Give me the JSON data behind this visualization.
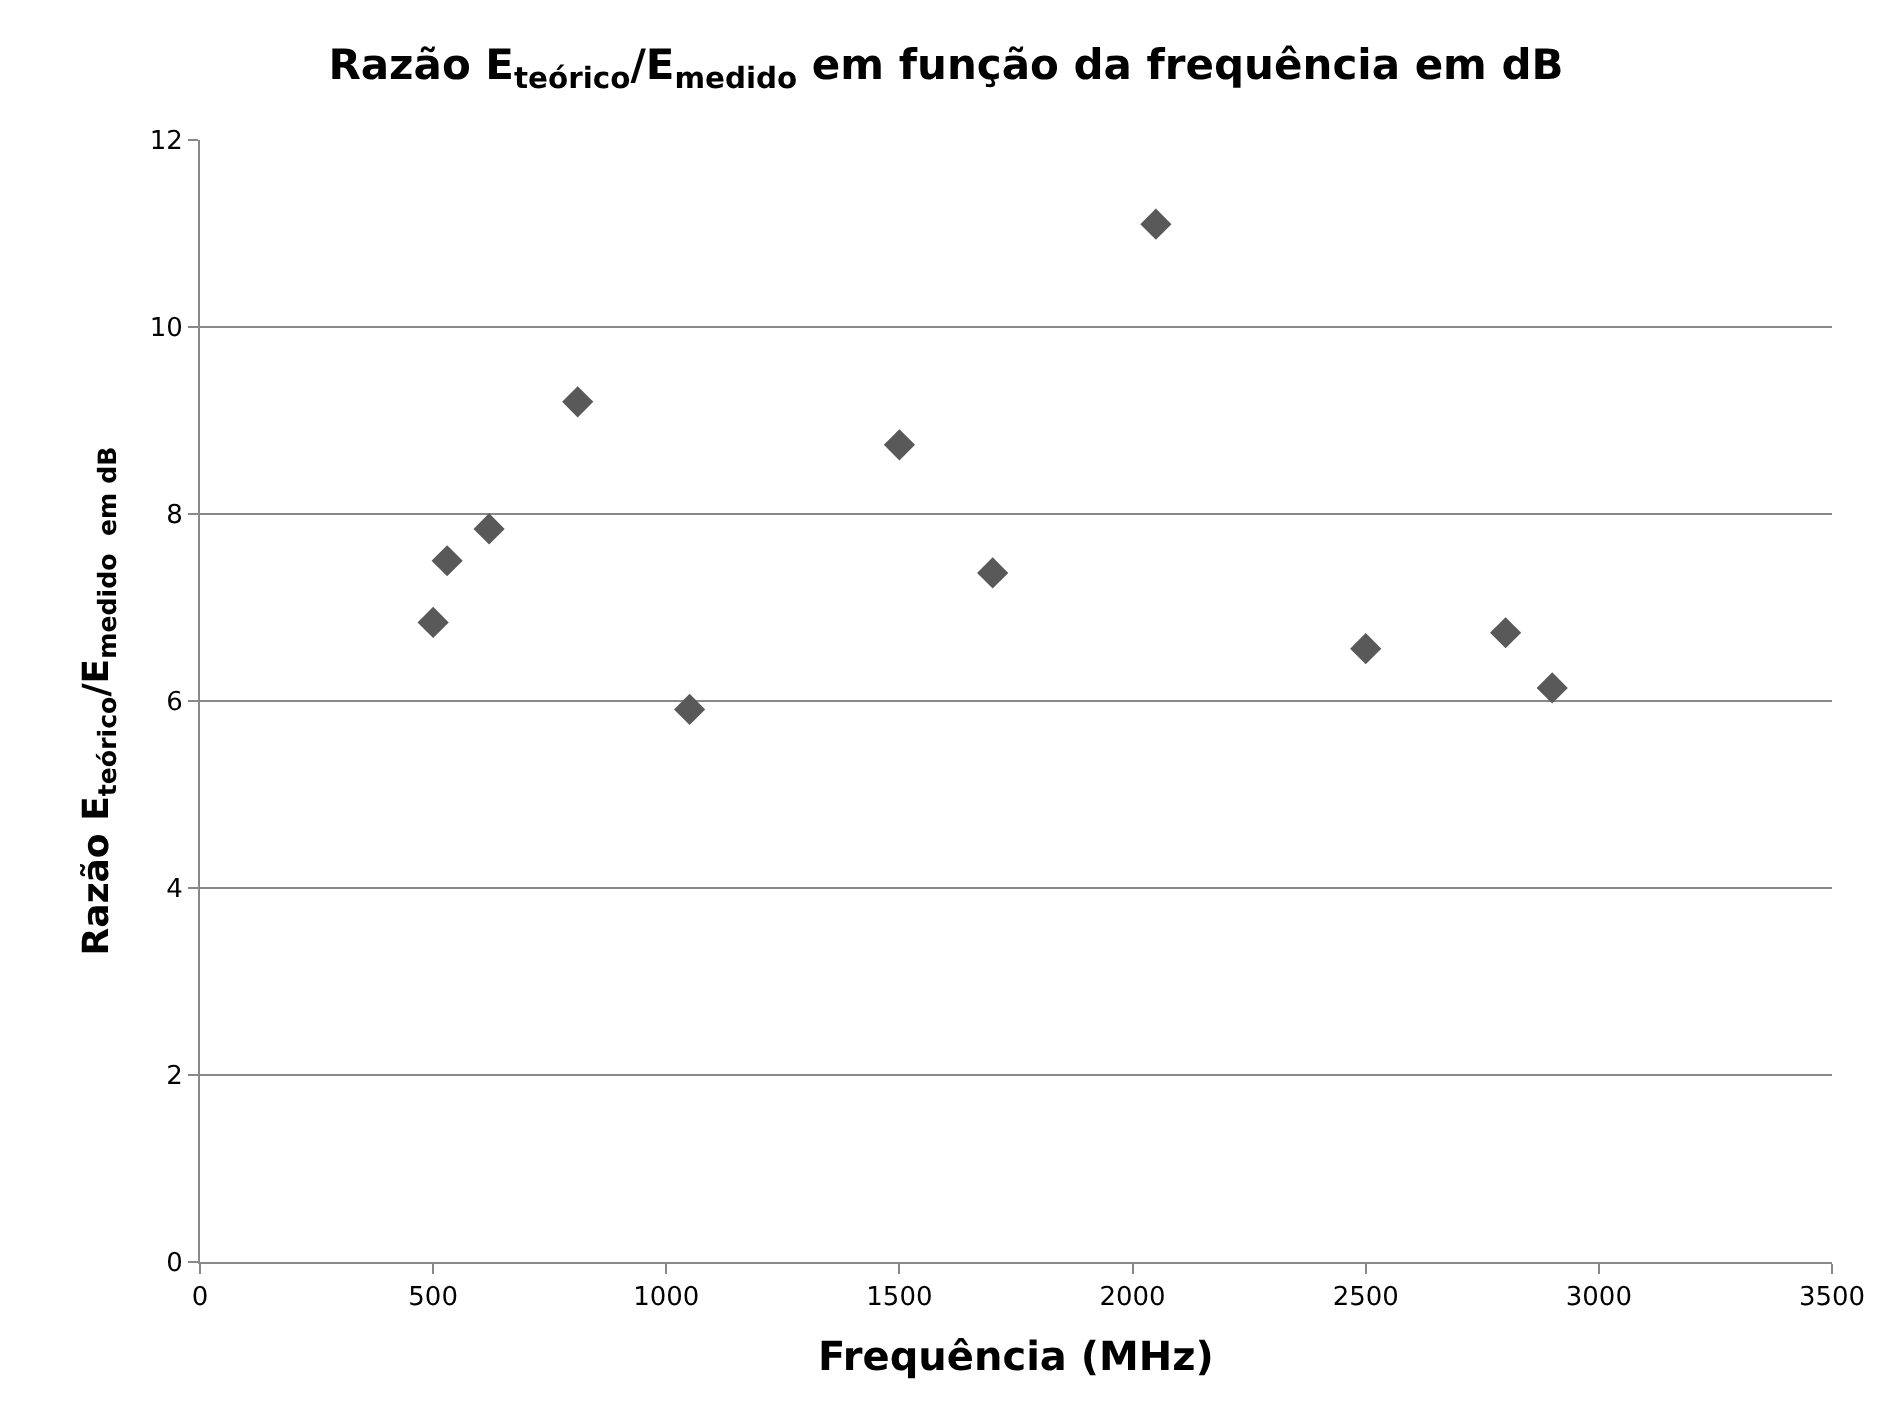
{
  "chart_data": {
    "type": "scatter",
    "title": "Razão E$_{teórico}$/E$_{medido}$ em função da frequência em dB",
    "xlabel": "Frequência (MHz)",
    "ylabel": "Razão E$_{teórico}$/E$_{medido  em dB}$",
    "x": [
      500,
      530,
      620,
      810,
      1050,
      1500,
      1700,
      2050,
      2500,
      2800,
      2900
    ],
    "series": [
      {
        "color": "#595959",
        "values": [
          6.84,
          7.5,
          7.84,
          9.2,
          5.91,
          8.74,
          7.37,
          11.1,
          6.56,
          6.73,
          6.14
        ]
      }
    ],
    "xlim": [
      0,
      3500
    ],
    "xticks": [
      0,
      500,
      1000,
      1500,
      2000,
      2500,
      3000,
      3500
    ],
    "ylim": [
      0,
      12
    ],
    "yticks": [
      0,
      2,
      4,
      6,
      8,
      10,
      12
    ],
    "grid": "y",
    "marker": "diamond"
  }
}
